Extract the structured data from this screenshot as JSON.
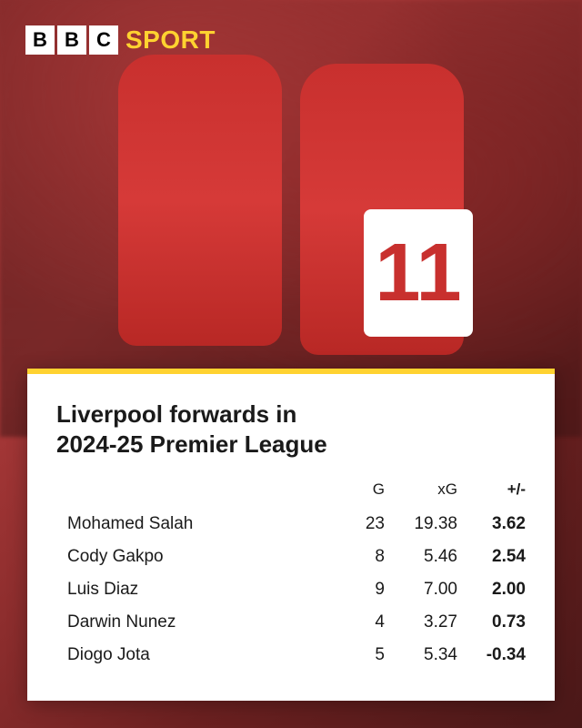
{
  "logo": {
    "letter1": "B",
    "letter2": "B",
    "letter3": "C",
    "brand": "SPORT"
  },
  "jersey_number": "11",
  "card": {
    "title_line1": "Liverpool forwards in",
    "title_line2": "2024-25 Premier League",
    "columns": {
      "goals": "G",
      "xg": "xG",
      "diff": "+/-"
    },
    "rows": [
      {
        "name": "Mohamed Salah",
        "g": "23",
        "xg": "19.38",
        "diff": "3.62"
      },
      {
        "name": "Cody Gakpo",
        "g": "8",
        "xg": "5.46",
        "diff": "2.54"
      },
      {
        "name": "Luis Diaz",
        "g": "9",
        "xg": "7.00",
        "diff": "2.00"
      },
      {
        "name": "Darwin Nunez",
        "g": "4",
        "xg": "3.27",
        "diff": "0.73"
      },
      {
        "name": "Diogo Jota",
        "g": "5",
        "xg": "5.34",
        "diff": "-0.34"
      }
    ]
  },
  "colors": {
    "accent_yellow": "#ffd230",
    "jersey_red": "#c8302e",
    "text_dark": "#1a1a1a",
    "card_bg": "#ffffff"
  }
}
